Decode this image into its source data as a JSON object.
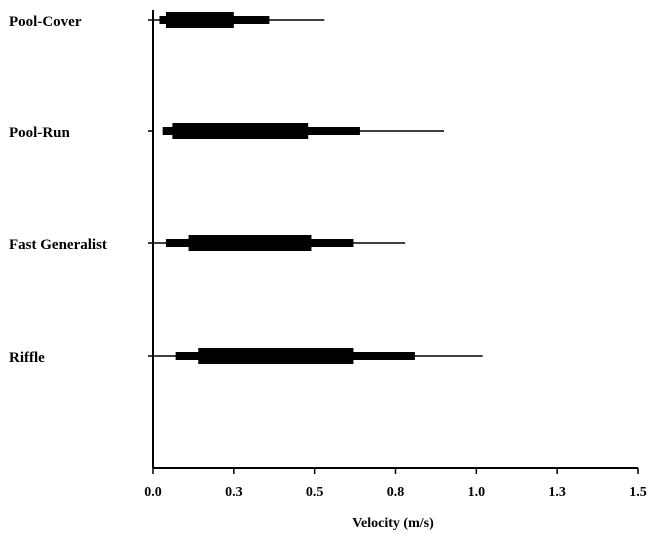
{
  "chart_data": {
    "type": "box",
    "orientation": "horizontal",
    "xlabel": "Velocity (m/s)",
    "ylabel": "",
    "xlim": [
      0,
      1.5
    ],
    "x_ticks": [
      0.0,
      0.25,
      0.5,
      0.75,
      1.0,
      1.25,
      1.5
    ],
    "x_tick_labels": [
      "0.0",
      "0.3",
      "0.5",
      "0.8",
      "1.0",
      "1.3",
      "1.5"
    ],
    "grid": false,
    "categories": [
      "Pool-Cover",
      "Pool-Run",
      "Fast Generalist",
      "Riffle"
    ],
    "series": [
      {
        "category": "Pool-Cover",
        "min": 0.0,
        "p10": 0.02,
        "q1": 0.04,
        "q3": 0.25,
        "p90": 0.36,
        "max": 0.53
      },
      {
        "category": "Pool-Run",
        "min": 0.03,
        "p10": 0.03,
        "q1": 0.06,
        "q3": 0.48,
        "p90": 0.64,
        "max": 0.9
      },
      {
        "category": "Fast Generalist",
        "min": 0.0,
        "p10": 0.04,
        "q1": 0.11,
        "q3": 0.49,
        "p90": 0.62,
        "max": 0.78
      },
      {
        "category": "Riffle",
        "min": 0.0,
        "p10": 0.07,
        "q1": 0.14,
        "q3": 0.62,
        "p90": 0.81,
        "max": 1.02
      }
    ]
  }
}
